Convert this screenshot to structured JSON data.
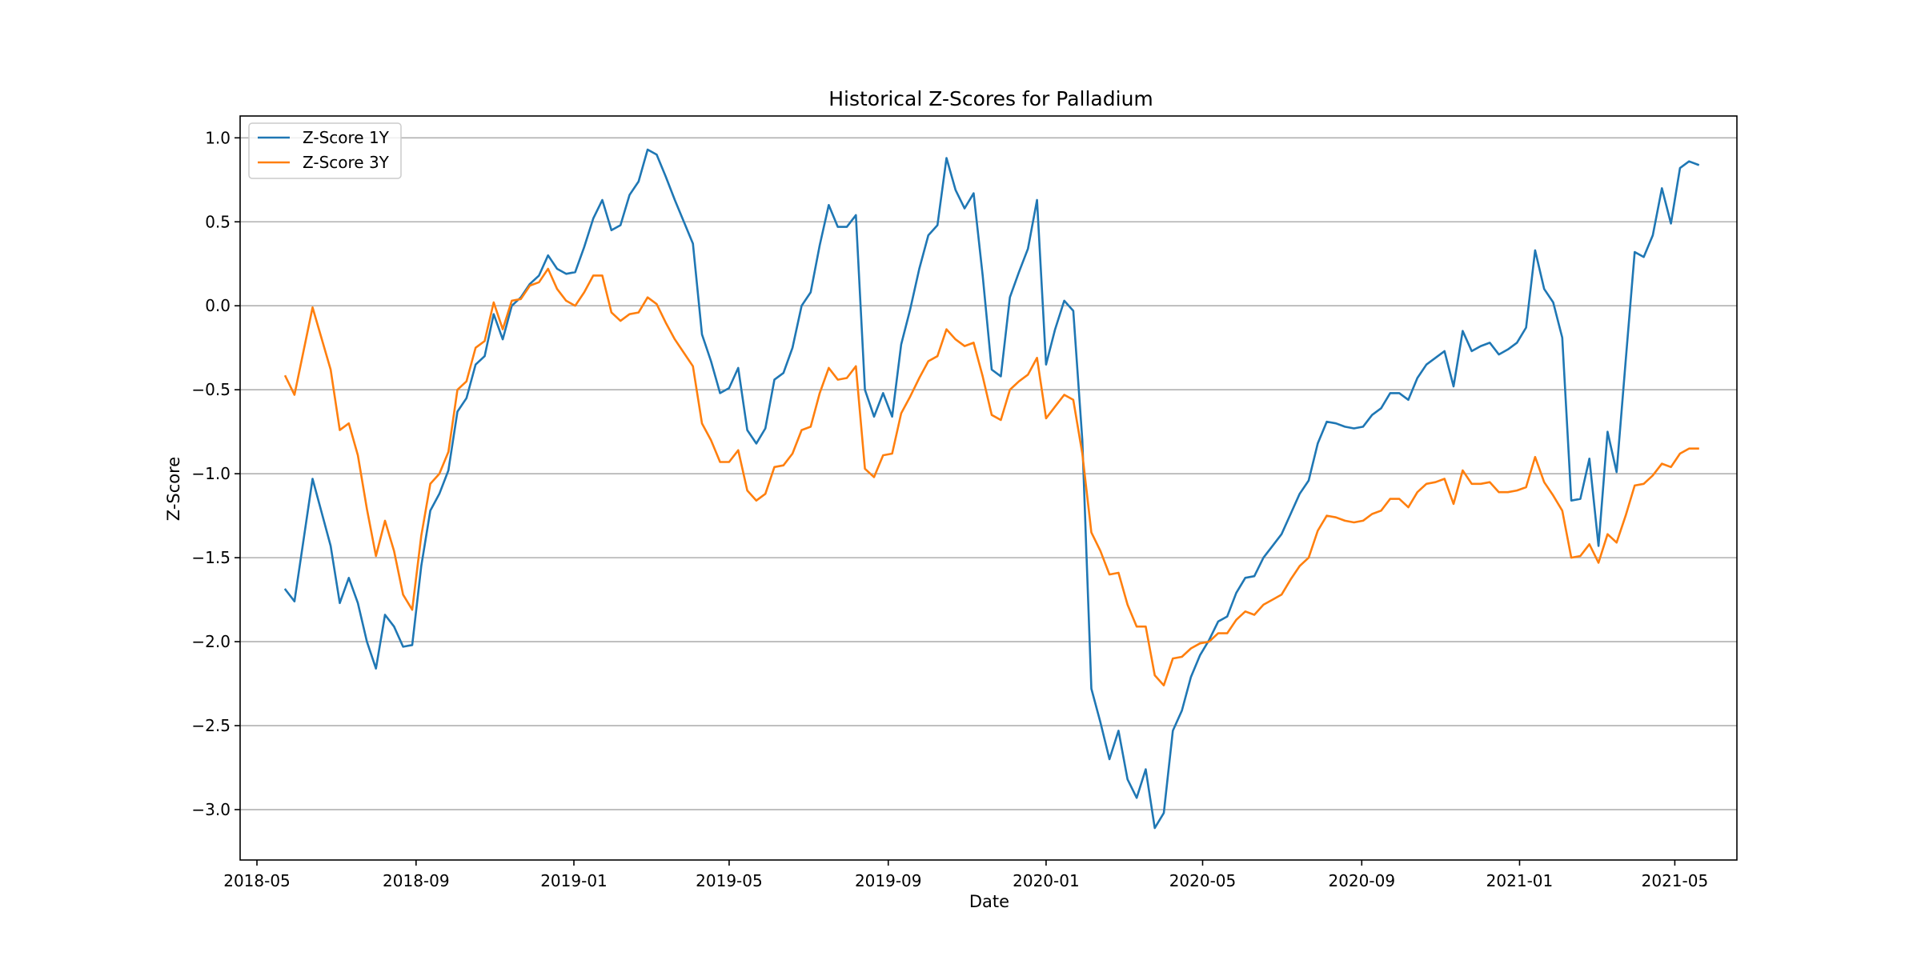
{
  "chart_data": {
    "type": "line",
    "title": "Historical Z-Scores for Palladium",
    "xlabel": "Date",
    "ylabel": "Z-Score",
    "ylim": [
      -3.3,
      1.13
    ],
    "xlim": [
      "2018-04-18",
      "2021-06-18"
    ],
    "grid": "horizontal",
    "legend_position": "top-left",
    "colors": {
      "z1y": "#1f77b4",
      "z3y": "#ff7f0e",
      "grid": "#b0b0b0"
    },
    "x_ticks": [
      "2018-05",
      "2018-09",
      "2019-01",
      "2019-05",
      "2019-09",
      "2020-01",
      "2020-05",
      "2020-09",
      "2021-01",
      "2021-05"
    ],
    "y_ticks": [
      1.0,
      0.5,
      0.0,
      -0.5,
      -1.0,
      -1.5,
      -2.0,
      -2.5,
      -3.0
    ],
    "y_tick_labels": [
      "1.0",
      "0.5",
      "0.0",
      "−0.5",
      "−1.0",
      "−1.5",
      "−2.0",
      "−2.5",
      "−3.0"
    ],
    "x": [
      "2018-05-23",
      "2018-05-30",
      "2018-06-13",
      "2018-06-27",
      "2018-07-04",
      "2018-07-11",
      "2018-07-18",
      "2018-07-25",
      "2018-08-01",
      "2018-08-08",
      "2018-08-15",
      "2018-08-22",
      "2018-08-29",
      "2018-09-05",
      "2018-09-12",
      "2018-09-19",
      "2018-09-26",
      "2018-10-03",
      "2018-10-10",
      "2018-10-17",
      "2018-10-24",
      "2018-10-31",
      "2018-11-07",
      "2018-11-14",
      "2018-11-21",
      "2018-11-28",
      "2018-12-05",
      "2018-12-12",
      "2018-12-19",
      "2018-12-26",
      "2019-01-02",
      "2019-01-09",
      "2019-01-16",
      "2019-01-23",
      "2019-01-30",
      "2019-02-06",
      "2019-02-13",
      "2019-02-20",
      "2019-02-27",
      "2019-03-06",
      "2019-03-13",
      "2019-03-20",
      "2019-03-27",
      "2019-04-03",
      "2019-04-10",
      "2019-04-17",
      "2019-04-24",
      "2019-05-01",
      "2019-05-08",
      "2019-05-15",
      "2019-05-22",
      "2019-05-29",
      "2019-06-05",
      "2019-06-12",
      "2019-06-19",
      "2019-06-26",
      "2019-07-03",
      "2019-07-10",
      "2019-07-17",
      "2019-07-24",
      "2019-07-31",
      "2019-08-07",
      "2019-08-14",
      "2019-08-21",
      "2019-08-28",
      "2019-09-04",
      "2019-09-11",
      "2019-09-18",
      "2019-09-25",
      "2019-10-02",
      "2019-10-09",
      "2019-10-16",
      "2019-10-23",
      "2019-10-30",
      "2019-11-06",
      "2019-11-13",
      "2019-11-20",
      "2019-11-27",
      "2019-12-04",
      "2019-12-11",
      "2019-12-18",
      "2019-12-25",
      "2020-01-01",
      "2020-01-08",
      "2020-01-15",
      "2020-01-22",
      "2020-01-29",
      "2020-02-05",
      "2020-02-12",
      "2020-02-19",
      "2020-02-26",
      "2020-03-04",
      "2020-03-11",
      "2020-03-18",
      "2020-03-25",
      "2020-04-01",
      "2020-04-08",
      "2020-04-15",
      "2020-04-22",
      "2020-04-29",
      "2020-05-06",
      "2020-05-13",
      "2020-05-20",
      "2020-05-27",
      "2020-06-03",
      "2020-06-10",
      "2020-06-17",
      "2020-06-24",
      "2020-07-01",
      "2020-07-08",
      "2020-07-15",
      "2020-07-22",
      "2020-07-29",
      "2020-08-05",
      "2020-08-12",
      "2020-08-19",
      "2020-08-26",
      "2020-09-02",
      "2020-09-09",
      "2020-09-16",
      "2020-09-23",
      "2020-09-30",
      "2020-10-07",
      "2020-10-14",
      "2020-10-21",
      "2020-10-28",
      "2020-11-04",
      "2020-11-11",
      "2020-11-18",
      "2020-11-25",
      "2020-12-02",
      "2020-12-09",
      "2020-12-16",
      "2020-12-23",
      "2020-12-30",
      "2021-01-06",
      "2021-01-13",
      "2021-01-20",
      "2021-01-27",
      "2021-02-03",
      "2021-02-10",
      "2021-02-17",
      "2021-02-24",
      "2021-03-03",
      "2021-03-10",
      "2021-03-17",
      "2021-03-24",
      "2021-03-31",
      "2021-04-07",
      "2021-04-14",
      "2021-04-21",
      "2021-04-28",
      "2021-05-05",
      "2021-05-12",
      "2021-05-19"
    ],
    "series": [
      {
        "name": "Z-Score 1Y",
        "color": "#1f77b4",
        "values": [
          -1.69,
          -1.76,
          -1.03,
          -1.43,
          -1.77,
          -1.62,
          -1.77,
          -2.0,
          -2.16,
          -1.84,
          -1.91,
          -2.03,
          -2.02,
          -1.55,
          -1.22,
          -1.12,
          -0.98,
          -0.63,
          -0.55,
          -0.35,
          -0.3,
          -0.05,
          -0.2,
          0.0,
          0.05,
          0.13,
          0.18,
          0.3,
          0.22,
          0.19,
          0.2,
          0.35,
          0.52,
          0.63,
          0.45,
          0.48,
          0.66,
          0.74,
          0.93,
          0.9,
          0.77,
          0.63,
          0.5,
          0.37,
          -0.17,
          -0.33,
          -0.52,
          -0.49,
          -0.37,
          -0.74,
          -0.82,
          -0.73,
          -0.44,
          -0.4,
          -0.25,
          0.0,
          0.08,
          0.36,
          0.6,
          0.47,
          0.47,
          0.54,
          -0.5,
          -0.66,
          -0.52,
          -0.66,
          -0.23,
          -0.02,
          0.22,
          0.42,
          0.48,
          0.88,
          0.69,
          0.58,
          0.67,
          0.18,
          -0.38,
          -0.42,
          0.05,
          0.2,
          0.34,
          0.63,
          -0.35,
          -0.14,
          0.03,
          -0.03,
          -0.8,
          -2.28,
          -2.48,
          -2.7,
          -2.53,
          -2.82,
          -2.93,
          -2.76,
          -3.11,
          -3.02,
          -2.53,
          -2.41,
          -2.21,
          -2.08,
          -1.99,
          -1.88,
          -1.85,
          -1.71,
          -1.62,
          -1.61,
          -1.5,
          -1.43,
          -1.36,
          -1.24,
          -1.12,
          -1.04,
          -0.82,
          -0.69,
          -0.7,
          -0.72,
          -0.73,
          -0.72,
          -0.65,
          -0.61,
          -0.52,
          -0.52,
          -0.56,
          -0.43,
          -0.35,
          -0.31,
          -0.27,
          -0.48,
          -0.15,
          -0.27,
          -0.24,
          -0.22,
          -0.29,
          -0.26,
          -0.22,
          -0.13,
          0.33,
          0.1,
          0.02,
          -0.19,
          -1.16,
          -1.15,
          -0.91,
          -1.43,
          -0.75,
          -0.99,
          -0.33,
          0.32,
          0.29,
          0.42,
          0.7,
          0.49,
          0.82,
          0.86,
          0.84
        ]
      },
      {
        "name": "Z-Score 3Y",
        "color": "#ff7f0e",
        "values": [
          -0.42,
          -0.53,
          -0.01,
          -0.38,
          -0.74,
          -0.7,
          -0.89,
          -1.21,
          -1.49,
          -1.28,
          -1.46,
          -1.72,
          -1.81,
          -1.37,
          -1.06,
          -1.0,
          -0.87,
          -0.5,
          -0.45,
          -0.25,
          -0.21,
          0.02,
          -0.14,
          0.03,
          0.04,
          0.12,
          0.14,
          0.22,
          0.1,
          0.03,
          0.0,
          0.08,
          0.18,
          0.18,
          -0.04,
          -0.09,
          -0.05,
          -0.04,
          0.05,
          0.01,
          -0.1,
          -0.2,
          -0.28,
          -0.36,
          -0.7,
          -0.8,
          -0.93,
          -0.93,
          -0.86,
          -1.1,
          -1.16,
          -1.12,
          -0.96,
          -0.95,
          -0.88,
          -0.74,
          -0.72,
          -0.52,
          -0.37,
          -0.44,
          -0.43,
          -0.36,
          -0.97,
          -1.02,
          -0.89,
          -0.88,
          -0.64,
          -0.54,
          -0.43,
          -0.33,
          -0.3,
          -0.14,
          -0.2,
          -0.24,
          -0.22,
          -0.42,
          -0.65,
          -0.68,
          -0.5,
          -0.45,
          -0.41,
          -0.31,
          -0.67,
          -0.6,
          -0.53,
          -0.56,
          -0.88,
          -1.35,
          -1.46,
          -1.6,
          -1.59,
          -1.78,
          -1.91,
          -1.91,
          -2.2,
          -2.26,
          -2.1,
          -2.09,
          -2.04,
          -2.01,
          -2.0,
          -1.95,
          -1.95,
          -1.87,
          -1.82,
          -1.84,
          -1.78,
          -1.75,
          -1.72,
          -1.63,
          -1.55,
          -1.5,
          -1.34,
          -1.25,
          -1.26,
          -1.28,
          -1.29,
          -1.28,
          -1.24,
          -1.22,
          -1.15,
          -1.15,
          -1.2,
          -1.11,
          -1.06,
          -1.05,
          -1.03,
          -1.18,
          -0.98,
          -1.06,
          -1.06,
          -1.05,
          -1.11,
          -1.11,
          -1.1,
          -1.08,
          -0.9,
          -1.05,
          -1.13,
          -1.22,
          -1.5,
          -1.49,
          -1.42,
          -1.53,
          -1.36,
          -1.41,
          -1.25,
          -1.07,
          -1.06,
          -1.01,
          -0.94,
          -0.96,
          -0.88,
          -0.85,
          -0.85
        ]
      }
    ]
  }
}
